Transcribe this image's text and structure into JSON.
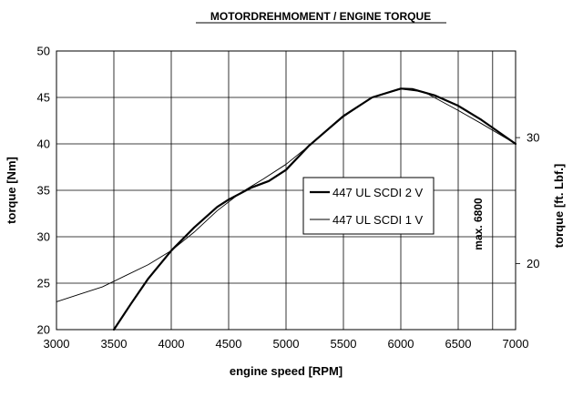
{
  "chart_data": {
    "type": "line",
    "title": "MOTORDREHMOMENT / ENGINE TORQUE",
    "xlabel": "engine speed [RPM]",
    "ylabel": "torque [Nm]",
    "y2label": "torque [ft. Lbf.]",
    "xlim": [
      3000,
      7000
    ],
    "ylim": [
      20,
      50
    ],
    "x_ticks": [
      "3000",
      "3500",
      "4000",
      "4500",
      "5000",
      "5500",
      "6000",
      "6500",
      "7000"
    ],
    "y_ticks": [
      "20",
      "25",
      "30",
      "35",
      "40",
      "45",
      "50"
    ],
    "y2_ticks": [
      "20",
      "30"
    ],
    "grid": true,
    "legend_position": "center-right",
    "annotation": {
      "text": "max. 6800",
      "x": 6800
    },
    "series": [
      {
        "name": "447 UL SCDI 2 V",
        "style": "thick",
        "color": "#000000",
        "x": [
          3500,
          3650,
          3800,
          4000,
          4200,
          4400,
          4500,
          4700,
          4850,
          5000,
          5200,
          5500,
          5750,
          6000,
          6100,
          6300,
          6500,
          6700,
          7000
        ],
        "y": [
          20,
          22.8,
          25.5,
          28.5,
          31.0,
          33.2,
          34.0,
          35.3,
          36.0,
          37.2,
          39.8,
          43.0,
          45.0,
          45.95,
          45.9,
          45.2,
          44.1,
          42.6,
          40.0
        ]
      },
      {
        "name": "447 UL SCDI 1 V",
        "style": "thin",
        "color": "#000000",
        "x": [
          3000,
          3200,
          3400,
          3600,
          3800,
          4000,
          4200,
          4400,
          4600,
          4800,
          5000,
          5200,
          5500,
          5750,
          6000,
          6200,
          6500,
          6700,
          7000
        ],
        "y": [
          23.0,
          23.8,
          24.6,
          25.8,
          27.0,
          28.5,
          30.5,
          32.8,
          34.7,
          36.2,
          37.8,
          39.8,
          42.9,
          45.0,
          45.9,
          45.6,
          43.6,
          42.2,
          40.0
        ]
      }
    ]
  }
}
